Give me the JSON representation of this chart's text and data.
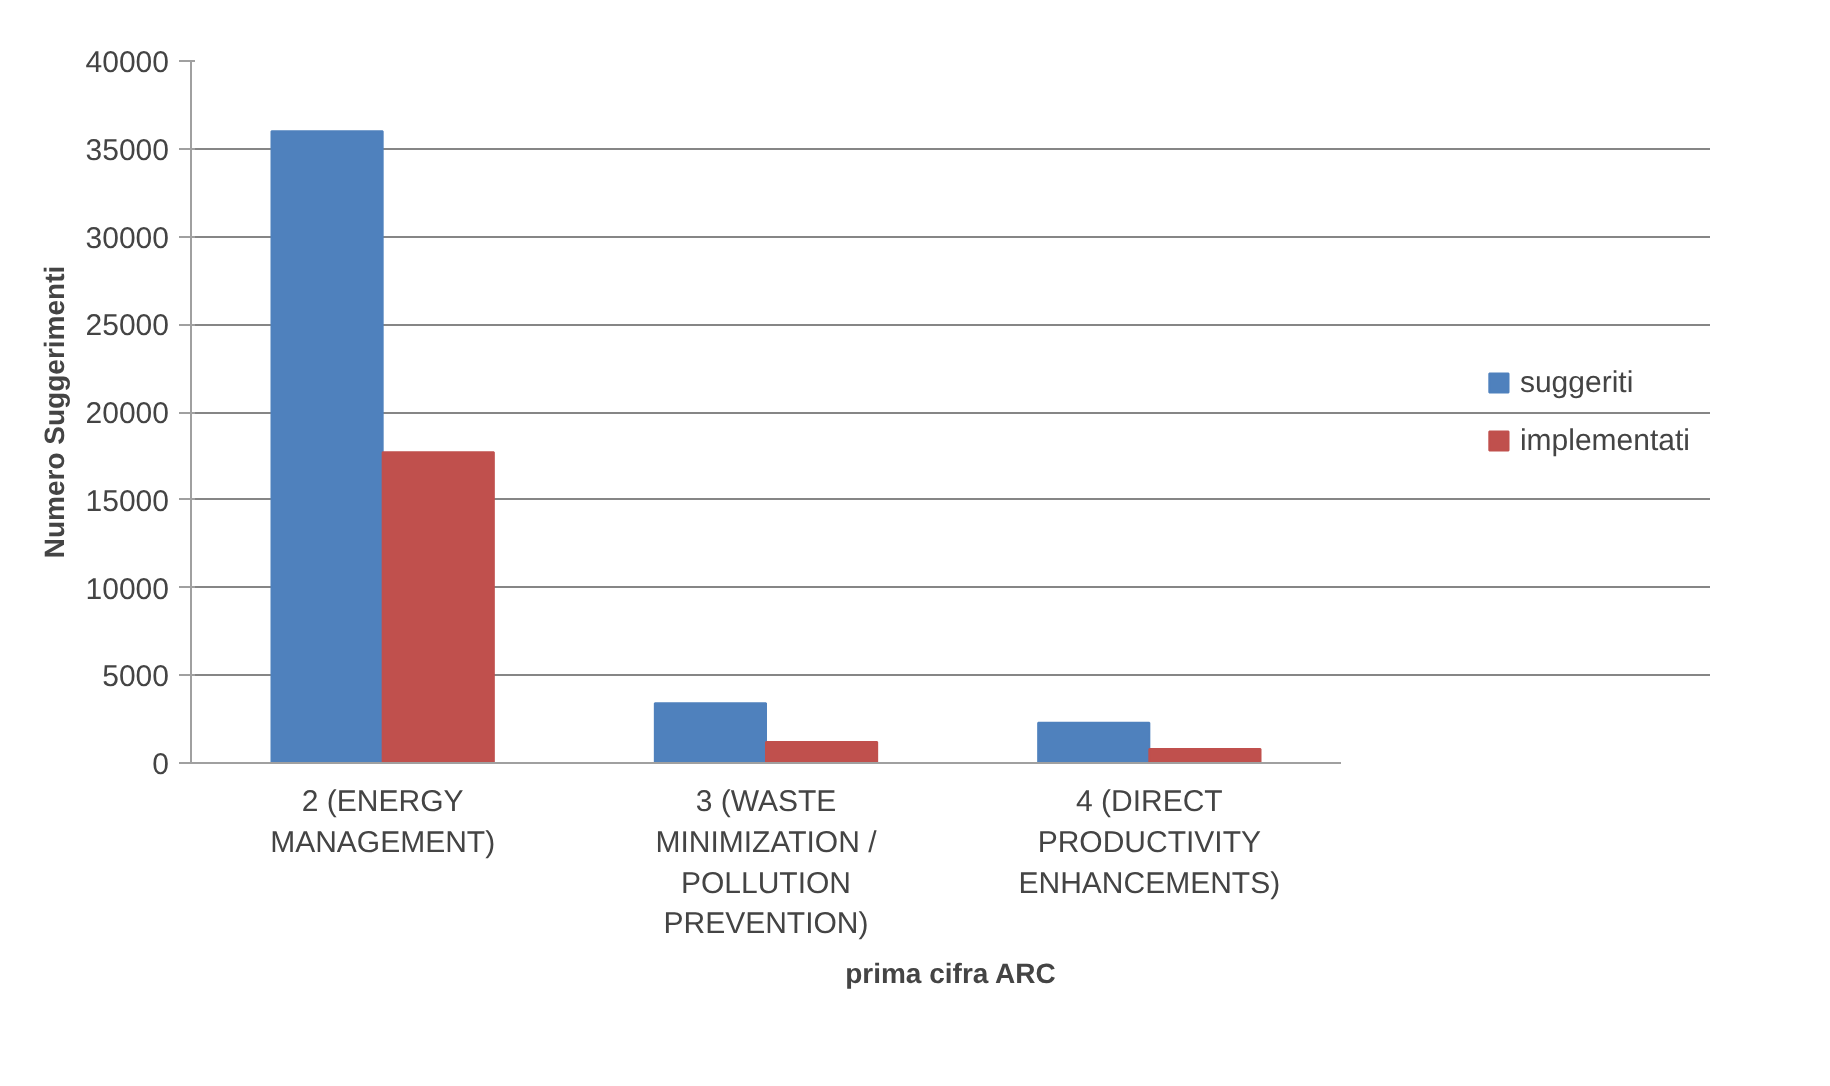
{
  "chart_data": {
    "type": "bar",
    "xlabel": "prima cifra ARC",
    "ylabel": "Numero Suggerimenti",
    "categories": [
      "2 (ENERGY MANAGEMENT)",
      "3 (WASTE MINIMIZATION / POLLUTION PREVENTION)",
      "4 (DIRECT PRODUCTIVITY ENHANCEMENTS)"
    ],
    "series": [
      {
        "name": "suggeriti",
        "color": "#4f81bd",
        "values": [
          36000,
          3400,
          2300
        ]
      },
      {
        "name": "implementati",
        "color": "#c0504d",
        "values": [
          17700,
          1200,
          800
        ]
      }
    ],
    "ylim": [
      0,
      40000
    ],
    "yticks": [
      0,
      5000,
      10000,
      15000,
      20000,
      25000,
      30000,
      35000,
      40000
    ],
    "grid": "y",
    "legend": "right"
  }
}
